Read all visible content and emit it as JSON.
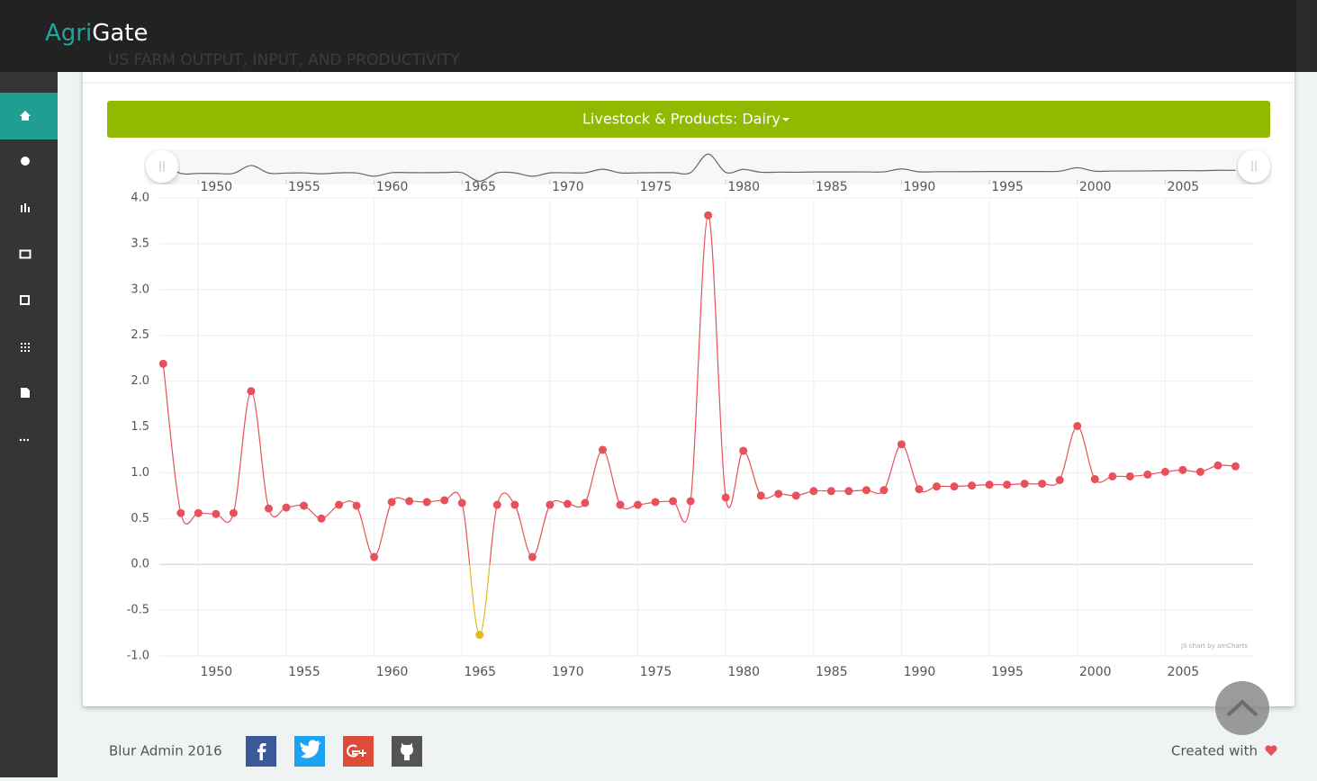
{
  "header": {
    "brand_accent": "Agri",
    "brand": "Gate"
  },
  "page_title": "US FARM OUTPUT, INPUT, AND PRODUCTIVITY",
  "dropdown": "Livestock & Products: Dairy",
  "chart_data": {
    "type": "line",
    "credit": "JS chart by amCharts",
    "x": [
      1948,
      1949,
      1950,
      1951,
      1952,
      1953,
      1954,
      1955,
      1956,
      1957,
      1958,
      1959,
      1960,
      1961,
      1962,
      1963,
      1964,
      1965,
      1966,
      1967,
      1968,
      1969,
      1970,
      1971,
      1972,
      1973,
      1974,
      1975,
      1976,
      1977,
      1978,
      1979,
      1980,
      1981,
      1982,
      1983,
      1984,
      1985,
      1986,
      1987,
      1988,
      1989,
      1990,
      1991,
      1992,
      1993,
      1994,
      1995,
      1996,
      1997,
      1998,
      1999,
      2000,
      2001,
      2002,
      2003,
      2004,
      2005,
      2006,
      2007,
      2008,
      2009
    ],
    "series": [
      {
        "color": "#e8505b",
        "negative_color": "#e6b820",
        "values": [
          2.19,
          0.56,
          0.56,
          0.55,
          0.56,
          1.89,
          0.61,
          0.62,
          0.64,
          0.5,
          0.65,
          0.64,
          0.08,
          0.68,
          0.69,
          0.68,
          0.7,
          0.67,
          -0.77,
          0.65,
          0.65,
          0.08,
          0.65,
          0.66,
          0.67,
          1.25,
          0.65,
          0.65,
          0.68,
          0.69,
          0.69,
          3.81,
          0.73,
          1.24,
          0.75,
          0.77,
          0.75,
          0.8,
          0.8,
          0.8,
          0.81,
          0.81,
          1.31,
          0.82,
          0.85,
          0.85,
          0.86,
          0.87,
          0.87,
          0.88,
          0.88,
          0.92,
          1.51,
          0.93,
          0.96,
          0.96,
          0.98,
          1.01,
          1.03,
          1.01,
          1.08,
          1.07
        ]
      }
    ],
    "xlim": [
      1946.5,
      2010
    ],
    "xticks": [
      1950,
      1955,
      1960,
      1965,
      1970,
      1975,
      1980,
      1985,
      1990,
      1995,
      2000,
      2005
    ],
    "ylim": [
      -1,
      4
    ],
    "yticks": [
      {
        "value": -1,
        "label": "-1.0"
      },
      -0.5,
      {
        "value": 0,
        "label": "0.0"
      },
      0.5,
      {
        "value": 1,
        "label": "1.0"
      },
      1.5,
      {
        "value": 2,
        "label": "2.0"
      },
      2.5,
      {
        "value": 3,
        "label": "3.0"
      },
      3.5,
      {
        "value": 4,
        "label": "4.0"
      }
    ],
    "grid": true
  },
  "footer": {
    "copyright": "Blur Admin 2016",
    "created": "Created with"
  }
}
